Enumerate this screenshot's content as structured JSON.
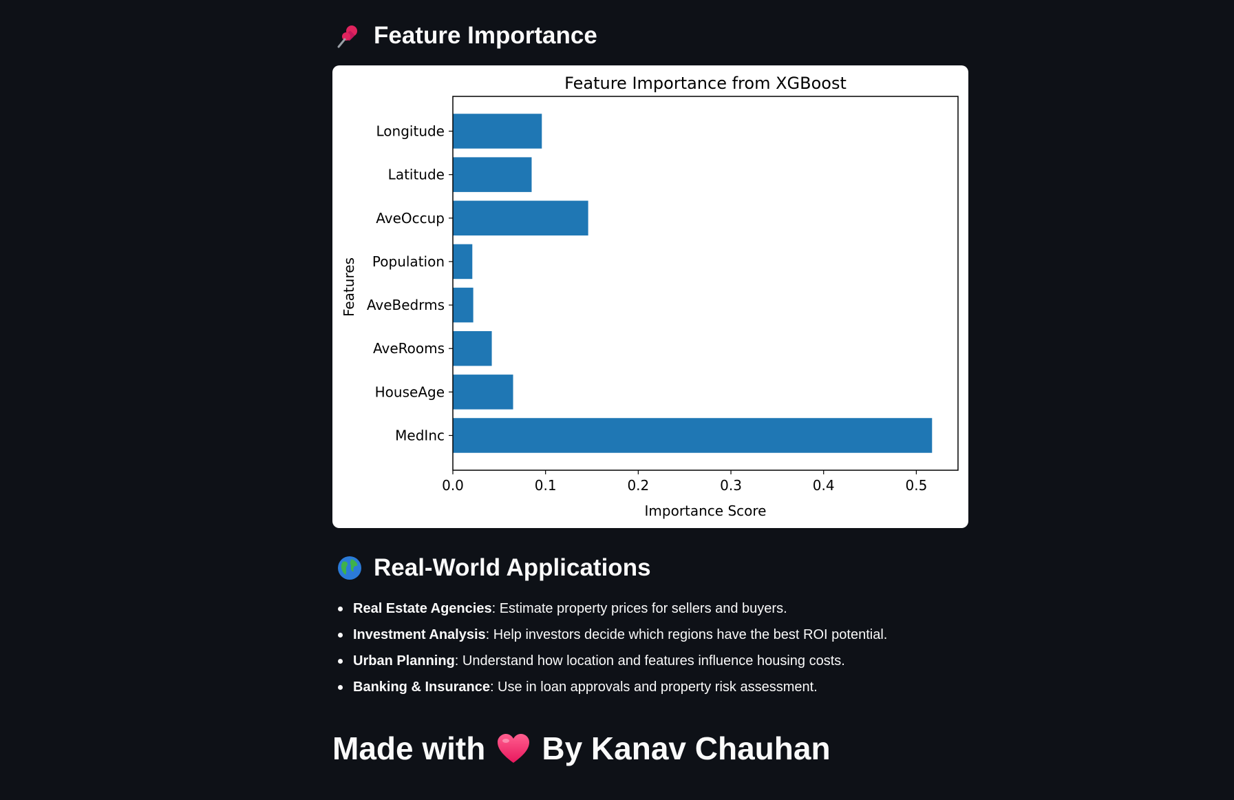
{
  "feature_importance": {
    "heading": "Feature Importance",
    "heading_icon": "pushpin-icon"
  },
  "chart_data": {
    "type": "bar",
    "orientation": "horizontal",
    "title": "Feature Importance from XGBoost",
    "xlabel": "Importance Score",
    "ylabel": "Features",
    "categories": [
      "MedInc",
      "HouseAge",
      "AveRooms",
      "AveBedrms",
      "Population",
      "AveOccup",
      "Latitude",
      "Longitude"
    ],
    "values": [
      0.517,
      0.065,
      0.042,
      0.022,
      0.021,
      0.146,
      0.085,
      0.096
    ],
    "xlim": [
      0,
      0.545
    ],
    "xticks": [
      0.0,
      0.1,
      0.2,
      0.3,
      0.4,
      0.5
    ],
    "xtick_labels": [
      "0.0",
      "0.1",
      "0.2",
      "0.3",
      "0.4",
      "0.5"
    ],
    "bar_color": "#1f77b4",
    "grid": false,
    "legend": false
  },
  "applications": {
    "heading": "Real-World Applications",
    "heading_icon": "globe-icon",
    "items": [
      {
        "title": "Real Estate Agencies",
        "text": ": Estimate property prices for sellers and buyers."
      },
      {
        "title": "Investment Analysis",
        "text": ": Help investors decide which regions have the best ROI potential."
      },
      {
        "title": "Urban Planning",
        "text": ": Understand how location and features influence housing costs."
      },
      {
        "title": "Banking & Insurance",
        "text": ": Use in loan approvals and property risk assessment."
      }
    ]
  },
  "footer": {
    "prefix": "Made with",
    "icon": "heart-icon",
    "suffix": "By Kanav Chauhan"
  },
  "colors": {
    "background": "#0e1117",
    "text": "#fafafa",
    "bar": "#1f77b4",
    "heart": "#f0427a"
  }
}
